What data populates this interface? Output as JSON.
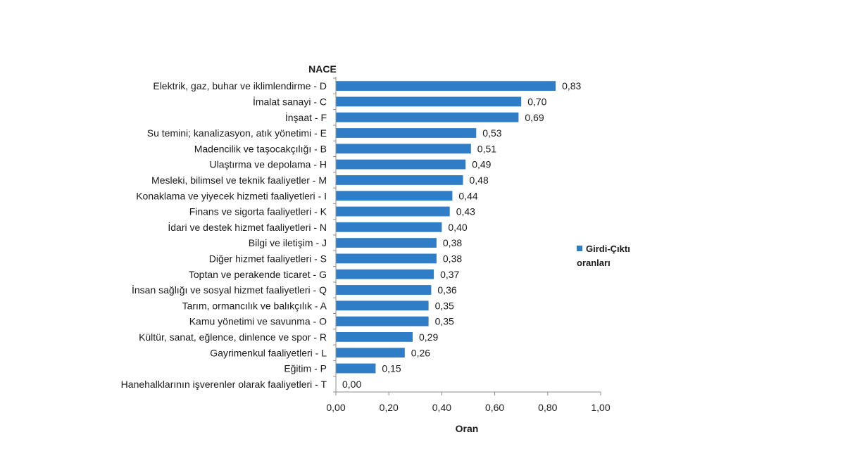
{
  "chart_data": {
    "type": "bar",
    "orientation": "horizontal",
    "category_axis_title": "NACE",
    "xlabel": "Oran",
    "xlim": [
      0,
      1
    ],
    "x_ticks": [
      "0,00",
      "0,20",
      "0,40",
      "0,60",
      "0,80",
      "1,00"
    ],
    "legend": {
      "lines": [
        "Girdi-Çıktı",
        "oranları"
      ],
      "placement": "right"
    },
    "color": "#2E7DC6",
    "grid": false,
    "categories": [
      "Elektrik, gaz, buhar ve iklimlendirme - D",
      "İmalat sanayi - C",
      "İnşaat - F",
      "Su temini; kanalizasyon, atık yönetimi - E",
      "Madencilik ve taşocakçılığı - B",
      "Ulaştırma ve depolama - H",
      "Mesleki, bilimsel ve teknik faaliyetler - M",
      "Konaklama ve yiyecek hizmeti faaliyetleri - I",
      "Finans ve sigorta faaliyetleri - K",
      "İdari ve destek hizmet faaliyetleri - N",
      "Bilgi ve iletişim - J",
      "Diğer hizmet faaliyetleri - S",
      "Toptan ve perakende ticaret - G",
      "İnsan sağlığı ve sosyal hizmet faaliyetleri - Q",
      "Tarım, ormancılık ve balıkçılık - A",
      "Kamu yönetimi ve savunma - O",
      "Kültür, sanat, eğlence, dinlence ve spor - R",
      "Gayrimenkul faaliyetleri - L",
      "Eğitim - P",
      "Hanehalklarının işverenler olarak  faaliyetleri - T"
    ],
    "values": [
      0.83,
      0.7,
      0.69,
      0.53,
      0.51,
      0.49,
      0.48,
      0.44,
      0.43,
      0.4,
      0.38,
      0.38,
      0.37,
      0.36,
      0.35,
      0.35,
      0.29,
      0.26,
      0.15,
      0.0
    ],
    "value_labels": [
      "0,83",
      "0,70",
      "0,69",
      "0,53",
      "0,51",
      "0,49",
      "0,48",
      "0,44",
      "0,43",
      "0,40",
      "0,38",
      "0,38",
      "0,37",
      "0,36",
      "0,35",
      "0,35",
      "0,29",
      "0,26",
      "0,15",
      "0,00"
    ]
  }
}
